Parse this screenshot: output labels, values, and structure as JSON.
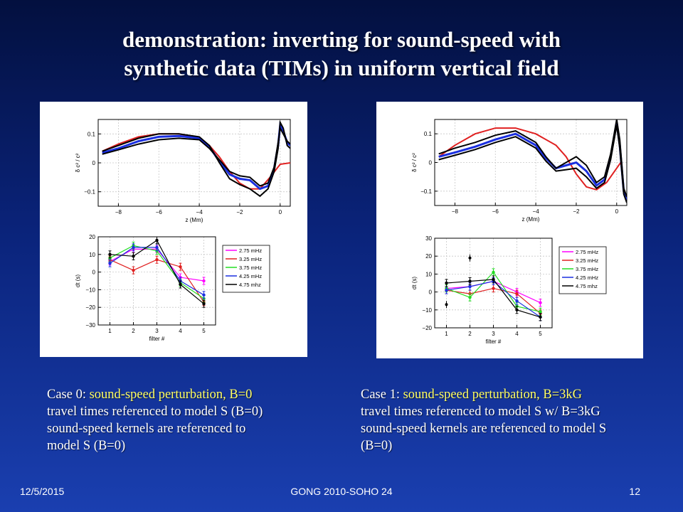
{
  "slide": {
    "title_line1": "demonstration: inverting for sound-speed with",
    "title_line2": "synthetic data (TIMs) in uniform vertical field",
    "footer_date": "12/5/2015",
    "footer_center": "GONG 2010-SOHO 24",
    "footer_page": "12"
  },
  "captions": {
    "left": {
      "case_label": "Case 0: ",
      "case_highlight": "sound-speed perturbation, B=0",
      "line2": "travel times referenced to model S (B=0)",
      "line3": "sound-speed kernels are referenced to",
      "line4": "model S (B=0)"
    },
    "right": {
      "case_label": "Case 1: ",
      "case_highlight": "sound-speed perturbation, B=3kG",
      "line2": "travel times referenced to model S w/ B=3kG",
      "line3": "sound-speed kernels are referenced to model S",
      "line4": "(B=0)"
    }
  },
  "colors": {
    "red": "#e02020",
    "blue": "#1a2fe0",
    "black": "#000000",
    "magenta": "#ff00ff",
    "green": "#22dd22",
    "highlight": "#ffff66"
  },
  "chart_data": [
    {
      "type": "line",
      "panel": "left-top",
      "xlabel": "z (Mm)",
      "ylabel": "δ c² / c²",
      "xlim": [
        -9,
        0.5
      ],
      "ylim": [
        -0.15,
        0.15
      ],
      "xticks": [
        -8,
        -6,
        -4,
        -2,
        0
      ],
      "xtick_labels": [
        "−8",
        "−6",
        "−4",
        "−2",
        "0"
      ],
      "yticks": [
        0.1,
        0,
        -0.1
      ],
      "ytick_labels": [
        "0.1",
        "0",
        "−0.1"
      ],
      "grid": true,
      "series": [
        {
          "color": "red",
          "x": [
            -8.8,
            -8,
            -7,
            -6,
            -5,
            -4,
            -3.5,
            -3,
            -2.5,
            -2,
            -1.5,
            -1,
            -0.5,
            0,
            0.5
          ],
          "y": [
            0.04,
            0.065,
            0.09,
            0.1,
            0.1,
            0.085,
            0.06,
            0.02,
            -0.03,
            -0.07,
            -0.09,
            -0.09,
            -0.05,
            -0.005,
            0.0
          ]
        },
        {
          "color": "blue",
          "x": [
            -8.8,
            -8,
            -7,
            -6,
            -5,
            -4,
            -3.5,
            -3,
            -2.5,
            -2,
            -1.5,
            -1,
            -0.6,
            -0.3,
            -0.1,
            0,
            0.15,
            0.35,
            0.5
          ],
          "y": [
            0.035,
            0.05,
            0.075,
            0.09,
            0.093,
            0.085,
            0.055,
            0.005,
            -0.04,
            -0.055,
            -0.06,
            -0.09,
            -0.08,
            -0.02,
            0.06,
            0.13,
            0.11,
            0.07,
            0.06
          ]
        },
        {
          "color": "black",
          "x": [
            -8.8,
            -8,
            -7,
            -6,
            -5,
            -4,
            -3.5,
            -3,
            -2.5,
            -2,
            -1.5,
            -1,
            -0.6,
            -0.3,
            -0.1,
            0,
            0.15,
            0.35,
            0.5
          ],
          "y": [
            0.04,
            0.06,
            0.085,
            0.1,
            0.1,
            0.09,
            0.06,
            0.0,
            -0.055,
            -0.075,
            -0.09,
            -0.115,
            -0.09,
            -0.03,
            0.05,
            0.14,
            0.12,
            0.06,
            0.05
          ]
        },
        {
          "color": "black",
          "x": [
            -8.8,
            -8,
            -7,
            -6,
            -5,
            -4,
            -3.5,
            -3,
            -2.5,
            -2,
            -1.5,
            -1,
            -0.6,
            -0.3,
            -0.1,
            0,
            0.15,
            0.35,
            0.5
          ],
          "y": [
            0.03,
            0.045,
            0.065,
            0.08,
            0.085,
            0.08,
            0.05,
            0.01,
            -0.03,
            -0.045,
            -0.05,
            -0.08,
            -0.07,
            -0.015,
            0.07,
            0.12,
            0.1,
            0.075,
            0.065
          ]
        }
      ]
    },
    {
      "type": "line",
      "panel": "left-bottom",
      "xlabel": "filter #",
      "ylabel": "dt (s)",
      "xlim": [
        0.5,
        5.5
      ],
      "ylim": [
        -30,
        20
      ],
      "xticks": [
        1,
        2,
        3,
        4,
        5
      ],
      "yticks": [
        20,
        10,
        0,
        -10,
        -20,
        -30
      ],
      "ytick_labels": [
        "20",
        "10",
        "0",
        "−10",
        "−20",
        "−30"
      ],
      "grid": true,
      "legend": [
        "2.75 mHz",
        "3.25 mHz",
        "3.75 mHz",
        "4.25 mHz",
        "4.75 mhz"
      ],
      "legend_position": "right",
      "series": [
        {
          "name": "2.75 mHz",
          "color": "magenta",
          "x": [
            1,
            2,
            3,
            4,
            5
          ],
          "y": [
            6,
            13,
            13,
            -3,
            -5
          ]
        },
        {
          "name": "3.25 mHz",
          "color": "red",
          "x": [
            1,
            2,
            3,
            4,
            5
          ],
          "y": [
            7,
            1,
            7,
            3,
            -17
          ]
        },
        {
          "name": "3.75 mHz",
          "color": "green",
          "x": [
            1,
            2,
            3,
            4,
            5
          ],
          "y": [
            8,
            15,
            12,
            -6,
            -15
          ]
        },
        {
          "name": "4.25 mHz",
          "color": "blue",
          "x": [
            1,
            2,
            3,
            4,
            5
          ],
          "y": [
            5,
            14,
            14,
            -5,
            -13
          ]
        },
        {
          "name": "4.75 mhz",
          "color": "black",
          "x": [
            1,
            2,
            3,
            4,
            5
          ],
          "y": [
            10,
            9,
            18,
            -7,
            -18
          ]
        }
      ]
    },
    {
      "type": "line",
      "panel": "right-top",
      "xlabel": "z (Mm)",
      "ylabel": "δ c² / c²",
      "xlim": [
        -9,
        0.5
      ],
      "ylim": [
        -0.15,
        0.15
      ],
      "xticks": [
        -8,
        -6,
        -4,
        -2,
        0
      ],
      "xtick_labels": [
        "−8",
        "−6",
        "−4",
        "−2",
        "0"
      ],
      "yticks": [
        0.1,
        0,
        -0.1
      ],
      "ytick_labels": [
        "0.1",
        "0",
        "−0.1"
      ],
      "grid": true,
      "series": [
        {
          "color": "red",
          "x": [
            -8.8,
            -8,
            -7,
            -6,
            -5,
            -4,
            -3,
            -2.5,
            -2,
            -1.5,
            -1,
            -0.5,
            0,
            0.2
          ],
          "y": [
            0.02,
            0.06,
            0.1,
            0.12,
            0.12,
            0.1,
            0.06,
            0.02,
            -0.04,
            -0.085,
            -0.095,
            -0.07,
            -0.02,
            0.0
          ]
        },
        {
          "color": "blue",
          "x": [
            -8.8,
            -8,
            -7,
            -6,
            -5,
            -4,
            -3.5,
            -3,
            -2.5,
            -2,
            -1.5,
            -1,
            -0.6,
            -0.3,
            0,
            0.15,
            0.35,
            0.5
          ],
          "y": [
            0.02,
            0.035,
            0.055,
            0.08,
            0.1,
            0.06,
            0.015,
            -0.02,
            -0.01,
            0.0,
            -0.03,
            -0.08,
            -0.06,
            0.02,
            0.14,
            0.06,
            -0.1,
            -0.13
          ]
        },
        {
          "color": "black",
          "x": [
            -8.8,
            -8,
            -7,
            -6,
            -5,
            -4,
            -3.5,
            -3,
            -2.5,
            -2,
            -1.5,
            -1,
            -0.6,
            -0.3,
            0,
            0.15,
            0.35,
            0.5
          ],
          "y": [
            0.03,
            0.05,
            0.07,
            0.095,
            0.11,
            0.07,
            0.02,
            -0.02,
            0.0,
            0.02,
            -0.01,
            -0.07,
            -0.05,
            0.03,
            0.15,
            0.08,
            -0.09,
            -0.12
          ]
        },
        {
          "color": "black",
          "x": [
            -8.8,
            -8,
            -7,
            -6,
            -5,
            -4,
            -3.5,
            -3,
            -2.5,
            -2,
            -1.5,
            -1,
            -0.6,
            -0.3,
            0,
            0.15,
            0.35,
            0.5
          ],
          "y": [
            0.01,
            0.025,
            0.045,
            0.07,
            0.09,
            0.05,
            0.005,
            -0.03,
            -0.025,
            -0.02,
            -0.05,
            -0.09,
            -0.07,
            0.01,
            0.13,
            0.05,
            -0.11,
            -0.14
          ]
        }
      ]
    },
    {
      "type": "line",
      "panel": "right-bottom",
      "xlabel": "filter #",
      "ylabel": "dt (s)",
      "xlim": [
        0.5,
        5.5
      ],
      "ylim": [
        -20,
        30
      ],
      "xticks": [
        1,
        2,
        3,
        4,
        5
      ],
      "yticks": [
        30,
        20,
        10,
        0,
        -10,
        -20
      ],
      "ytick_labels": [
        "30",
        "20",
        "10",
        "0",
        "−10",
        "−20"
      ],
      "grid": true,
      "legend": [
        "2.75 mHz",
        "3.25 mHz",
        "3.75 mHz",
        "4.25 mHz",
        "4.75 mhz"
      ],
      "legend_position": "right",
      "series": [
        {
          "name": "2.75 mHz",
          "color": "magenta",
          "x": [
            1,
            2,
            3,
            4,
            5
          ],
          "y": [
            2,
            3,
            6,
            0,
            -6
          ]
        },
        {
          "name": "3.25 mHz",
          "color": "red",
          "x": [
            1,
            2,
            3,
            4,
            5
          ],
          "y": [
            1,
            -1,
            2,
            -1,
            -12
          ]
        },
        {
          "name": "3.75 mHz",
          "color": "green",
          "x": [
            1,
            2,
            3,
            4,
            5
          ],
          "y": [
            2,
            -3,
            11,
            -8,
            -11
          ]
        },
        {
          "name": "4.25 mHz",
          "color": "blue",
          "x": [
            1,
            2,
            3,
            4,
            5
          ],
          "y": [
            1,
            3,
            6,
            -5,
            -14
          ]
        },
        {
          "name": "4.75 mhz",
          "color": "black",
          "x": [
            1,
            2,
            3,
            4,
            5
          ],
          "y": [
            5,
            6,
            7,
            -10,
            -14
          ]
        }
      ],
      "outlier_points": [
        {
          "color": "black",
          "x": 1,
          "y": -7
        },
        {
          "color": "black",
          "x": 2,
          "y": 19
        }
      ]
    }
  ]
}
